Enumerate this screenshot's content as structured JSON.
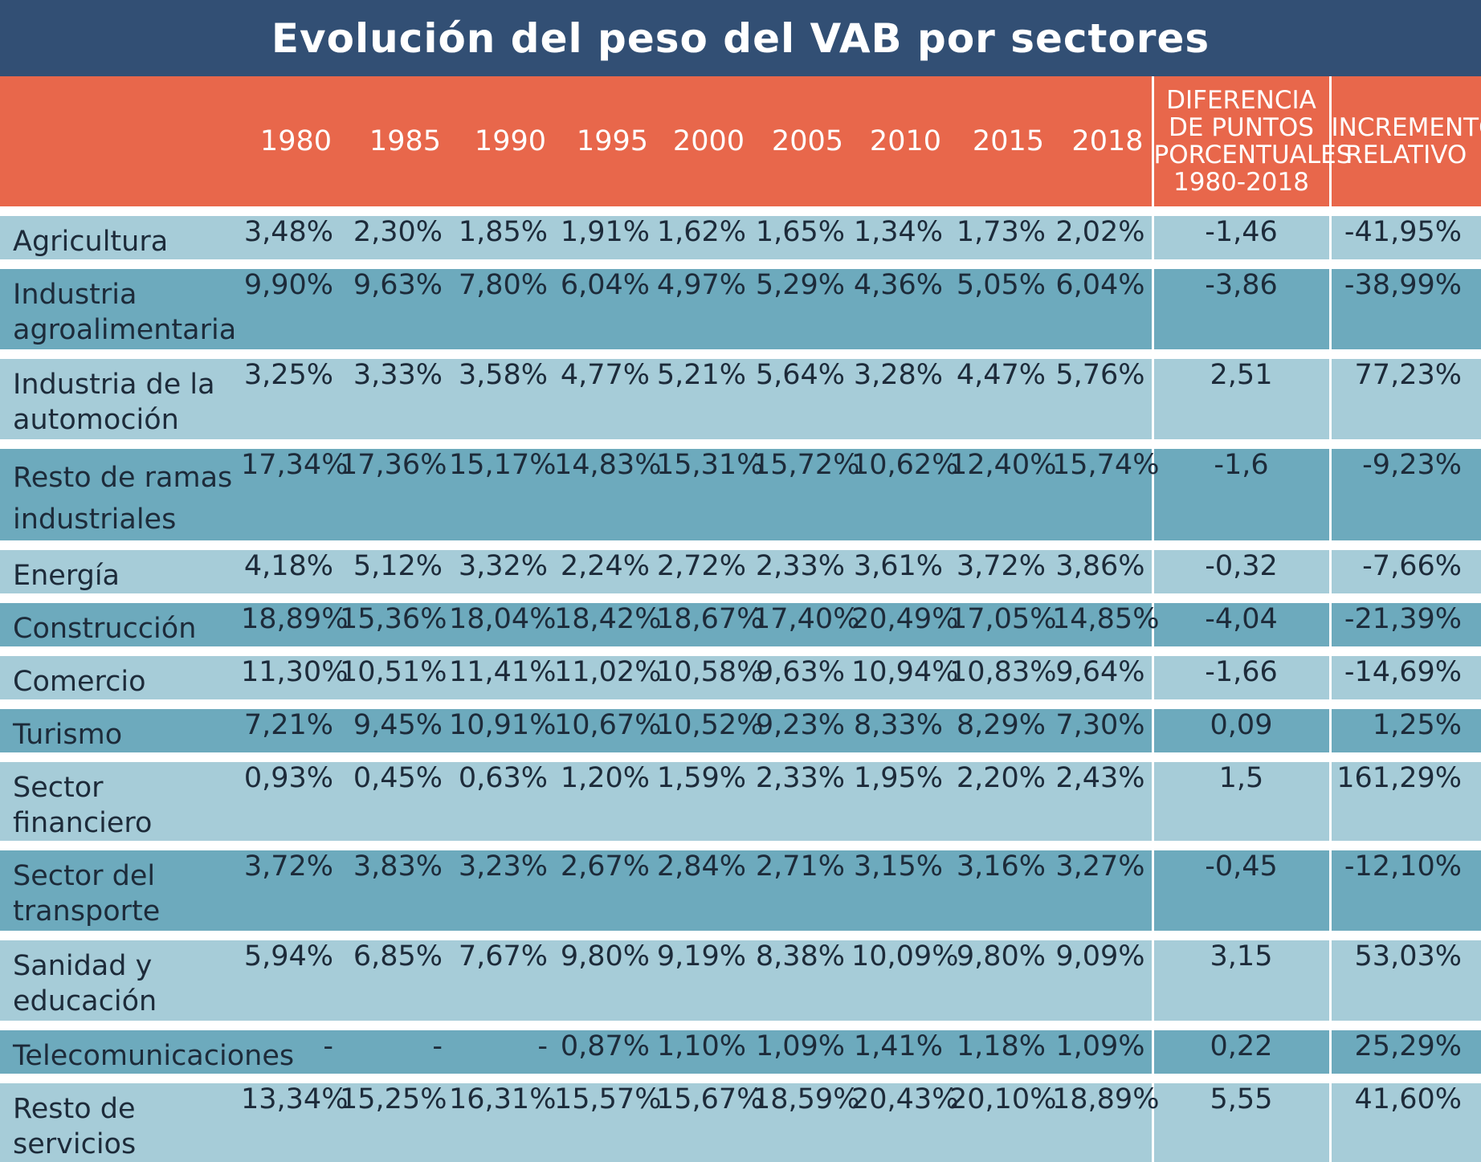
{
  "title": "Evolución del peso del VAB por sectores",
  "colors": {
    "title_bg": "#324f74",
    "header_bg": "#e8674b",
    "row_light": "#a6ccd8",
    "row_dark": "#6daabd"
  },
  "chart_data": {
    "type": "table",
    "title": "Evolución del peso del VAB por sectores",
    "columns": [
      "1980",
      "1985",
      "1990",
      "1995",
      "2000",
      "2005",
      "2010",
      "2015",
      "2018",
      "DIFERENCIA DE PUNTOS PORCENTUALES 1980-2018",
      "INCREMENTO RELATIVO"
    ],
    "header": {
      "years": [
        "1980",
        "1985",
        "1990",
        "1995",
        "2000",
        "2005",
        "2010",
        "2015",
        "2018"
      ],
      "diff_lines": [
        "DIFERENCIA",
        "DE PUNTOS",
        "PORCENTUALES",
        "1980-2018"
      ],
      "inc_lines": [
        "INCREMENTO",
        "RELATIVO"
      ]
    },
    "rows": [
      {
        "label": "Agricultura",
        "values": [
          "3,48%",
          "2,30%",
          "1,85%",
          "1,91%",
          "1,62%",
          "1,65%",
          "1,34%",
          "1,73%",
          "2,02%"
        ],
        "diff": "-1,46",
        "inc": "-41,95%"
      },
      {
        "label": "Industria agroalimentaria",
        "values": [
          "9,90%",
          "9,63%",
          "7,80%",
          "6,04%",
          "4,97%",
          "5,29%",
          "4,36%",
          "5,05%",
          "6,04%"
        ],
        "diff": "-3,86",
        "inc": "-38,99%"
      },
      {
        "label": "Industria de la automoción",
        "values": [
          "3,25%",
          "3,33%",
          "3,58%",
          "4,77%",
          "5,21%",
          "5,64%",
          "3,28%",
          "4,47%",
          "5,76%"
        ],
        "diff": "2,51",
        "inc": "77,23%"
      },
      {
        "label": "Resto de ramas industriales",
        "values": [
          "17,34%",
          "17,36%",
          "15,17%",
          "14,83%",
          "15,31%",
          "15,72%",
          "10,62%",
          "12,40%",
          "15,74%"
        ],
        "diff": "-1,6",
        "inc": "-9,23%"
      },
      {
        "label": "Energía",
        "values": [
          "4,18%",
          "5,12%",
          "3,32%",
          "2,24%",
          "2,72%",
          "2,33%",
          "3,61%",
          "3,72%",
          "3,86%"
        ],
        "diff": "-0,32",
        "inc": "-7,66%"
      },
      {
        "label": "Construcción",
        "values": [
          "18,89%",
          "15,36%",
          "18,04%",
          "18,42%",
          "18,67%",
          "17,40%",
          "20,49%",
          "17,05%",
          "14,85%"
        ],
        "diff": "-4,04",
        "inc": "-21,39%"
      },
      {
        "label": "Comercio",
        "values": [
          "11,30%",
          "10,51%",
          "11,41%",
          "11,02%",
          "10,58%",
          "9,63%",
          "10,94%",
          "10,83%",
          "9,64%"
        ],
        "diff": "-1,66",
        "inc": "-14,69%"
      },
      {
        "label": "Turismo",
        "values": [
          "7,21%",
          "9,45%",
          "10,91%",
          "10,67%",
          "10,52%",
          "9,23%",
          "8,33%",
          "8,29%",
          "7,30%"
        ],
        "diff": "0,09",
        "inc": "1,25%"
      },
      {
        "label": "Sector financiero",
        "values": [
          "0,93%",
          "0,45%",
          "0,63%",
          "1,20%",
          "1,59%",
          "2,33%",
          "1,95%",
          "2,20%",
          "2,43%"
        ],
        "diff": "1,5",
        "inc": "161,29%"
      },
      {
        "label": "Sector del transporte",
        "values": [
          "3,72%",
          "3,83%",
          "3,23%",
          "2,67%",
          "2,84%",
          "2,71%",
          "3,15%",
          "3,16%",
          "3,27%"
        ],
        "diff": "-0,45",
        "inc": "-12,10%"
      },
      {
        "label": "Sanidad y educación",
        "values": [
          "5,94%",
          "6,85%",
          "7,67%",
          "9,80%",
          "9,19%",
          "8,38%",
          "10,09%",
          "9,80%",
          "9,09%"
        ],
        "diff": "3,15",
        "inc": "53,03%"
      },
      {
        "label": "Telecomunicaciones",
        "values": [
          "-",
          "-",
          "-",
          "0,87%",
          "1,10%",
          "1,09%",
          "1,41%",
          "1,18%",
          "1,09%"
        ],
        "diff": "0,22",
        "inc": "25,29%"
      },
      {
        "label": "Resto de servicios",
        "values": [
          "13,34%",
          "15,25%",
          "16,31%",
          "15,57%",
          "15,67%",
          "18,59%",
          "20,43%",
          "20,10%",
          "18,89%"
        ],
        "diff": "5,55",
        "inc": "41,60%"
      }
    ]
  }
}
